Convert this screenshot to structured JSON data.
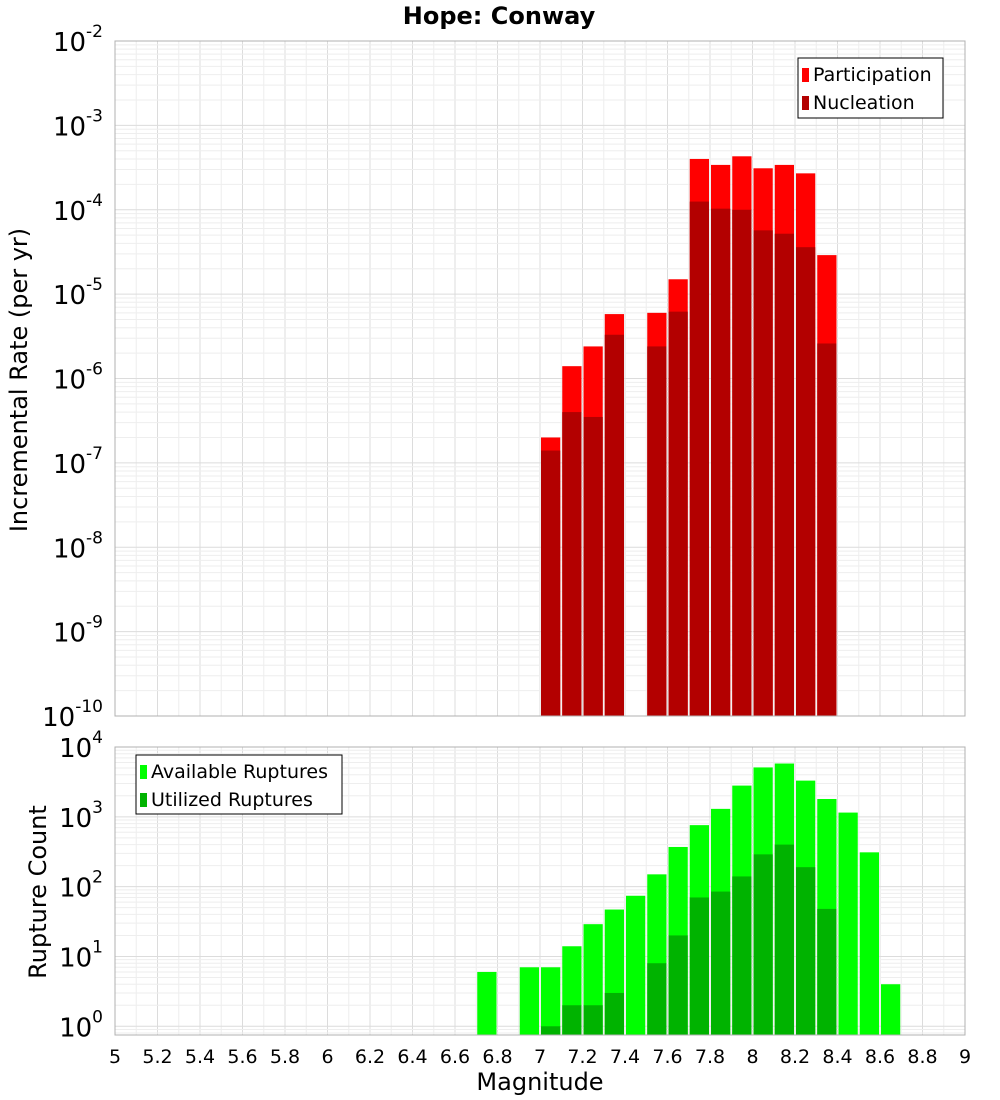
{
  "title": "Hope: Conway",
  "chart_data": [
    {
      "type": "bar",
      "panel": "rate",
      "ylabel": "Incremental Rate (per yr)",
      "yscale": "log",
      "ylim": [
        1e-10,
        0.01
      ],
      "xlim": [
        5,
        9
      ],
      "yticks": [
        {
          "base": "10",
          "exp": "-10"
        },
        {
          "base": "10",
          "exp": "-9"
        },
        {
          "base": "10",
          "exp": "-8"
        },
        {
          "base": "10",
          "exp": "-7"
        },
        {
          "base": "10",
          "exp": "-6"
        },
        {
          "base": "10",
          "exp": "-5"
        },
        {
          "base": "10",
          "exp": "-4"
        },
        {
          "base": "10",
          "exp": "-3"
        },
        {
          "base": "10",
          "exp": "-2"
        }
      ],
      "legend_position": "top-right",
      "series": [
        {
          "name": "Participation",
          "color": "#ff0000",
          "x": [
            7.05,
            7.15,
            7.25,
            7.35,
            7.55,
            7.65,
            7.75,
            7.85,
            7.95,
            8.05,
            8.15,
            8.25,
            8.35
          ],
          "values": [
            2e-07,
            1.4e-06,
            2.4e-06,
            5.8e-06,
            6e-06,
            1.5e-05,
            0.0004,
            0.00034,
            0.00043,
            0.00031,
            0.00034,
            0.00027,
            2.9e-05
          ]
        },
        {
          "name": "Nucleation",
          "color": "#b30000",
          "x": [
            7.05,
            7.15,
            7.25,
            7.35,
            7.55,
            7.65,
            7.75,
            7.85,
            7.95,
            8.05,
            8.15,
            8.25,
            8.35
          ],
          "values": [
            1.4e-07,
            4e-07,
            3.5e-07,
            3.3e-06,
            2.4e-06,
            6.2e-06,
            0.000125,
            0.000103,
            0.0001,
            5.7e-05,
            5.2e-05,
            3.6e-05,
            2.6e-06
          ]
        }
      ]
    },
    {
      "type": "bar",
      "panel": "count",
      "xlabel": "Magnitude",
      "ylabel": "Rupture Count",
      "yscale": "log",
      "ylim": [
        0.75,
        10000
      ],
      "xlim": [
        5,
        9
      ],
      "xticks": [
        "5",
        "5.2",
        "5.4",
        "5.6",
        "5.8",
        "6",
        "6.2",
        "6.4",
        "6.6",
        "6.8",
        "7",
        "7.2",
        "7.4",
        "7.6",
        "7.8",
        "8",
        "8.2",
        "8.4",
        "8.6",
        "8.8",
        "9"
      ],
      "yticks": [
        {
          "base": "10",
          "exp": "0"
        },
        {
          "base": "10",
          "exp": "1"
        },
        {
          "base": "10",
          "exp": "2"
        },
        {
          "base": "10",
          "exp": "3"
        },
        {
          "base": "10",
          "exp": "4"
        }
      ],
      "legend_position": "top-left",
      "series": [
        {
          "name": "Available Ruptures",
          "color": "#00ff00",
          "x": [
            6.75,
            6.95,
            7.05,
            7.15,
            7.25,
            7.35,
            7.45,
            7.55,
            7.65,
            7.75,
            7.85,
            7.95,
            8.05,
            8.15,
            8.25,
            8.35,
            8.45,
            8.55,
            8.65
          ],
          "values": [
            6,
            7,
            7,
            14,
            29,
            47,
            74,
            150,
            370,
            760,
            1300,
            2800,
            5100,
            5800,
            3300,
            1800,
            1150,
            310,
            4
          ]
        },
        {
          "name": "Utilized Ruptures",
          "color": "#00b300",
          "x": [
            7.05,
            7.15,
            7.25,
            7.35,
            7.55,
            7.65,
            7.75,
            7.85,
            7.95,
            8.05,
            8.15,
            8.25,
            8.35
          ],
          "values": [
            1,
            2,
            2,
            3,
            8,
            20,
            70,
            85,
            140,
            290,
            400,
            190,
            48
          ]
        }
      ]
    }
  ]
}
